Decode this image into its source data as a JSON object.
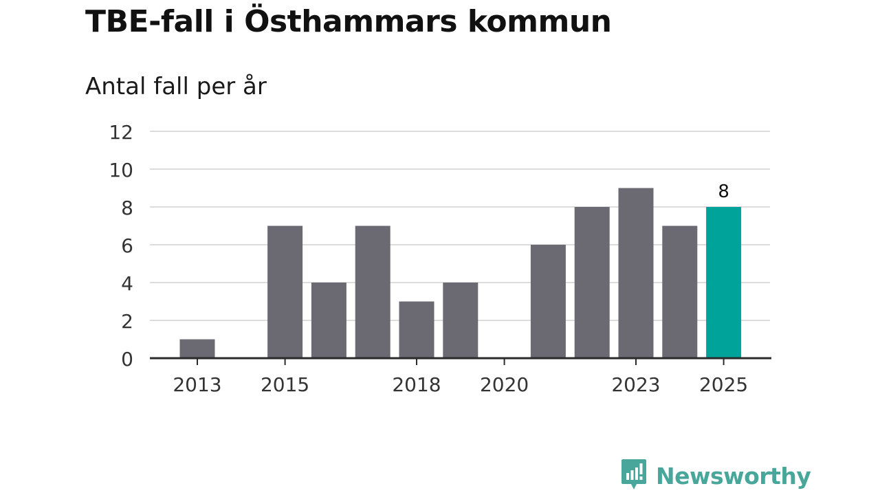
{
  "chart_data": {
    "type": "bar",
    "title": "TBE-fall i Östhammars kommun",
    "subtitle": "Antal fall per år",
    "categories": [
      "2013",
      "2014",
      "2015",
      "2016",
      "2017",
      "2018",
      "2019",
      "2020",
      "2021",
      "2022",
      "2023",
      "2024",
      "2025"
    ],
    "values": [
      1,
      0,
      7,
      4,
      7,
      3,
      4,
      0,
      6,
      8,
      9,
      7,
      8
    ],
    "x_tick_labels": [
      "2013",
      "2015",
      "2018",
      "2020",
      "2023",
      "2025"
    ],
    "y_ticks": [
      0,
      2,
      4,
      6,
      8,
      10,
      12
    ],
    "ylim": [
      0,
      12
    ],
    "highlight_category": "2025",
    "highlight_label": "8",
    "xlabel": "",
    "ylabel": "",
    "grid": true,
    "colors": {
      "bar": "#6b6a72",
      "highlight": "#00a39a",
      "grid": "#dcdcdc",
      "axis": "#2b2b2b",
      "tick_text": "#333333"
    }
  },
  "branding": {
    "name": "Newsworthy",
    "icon": "newsworthy-logo-icon",
    "color": "#48a79a"
  }
}
